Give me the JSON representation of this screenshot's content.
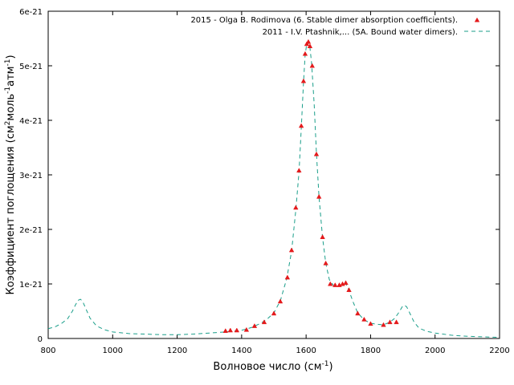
{
  "chart_data": {
    "type": "scatter",
    "xlabel": {
      "main": "Волновое число (см",
      "sup": "-1",
      "tail": ")"
    },
    "ylabel": {
      "p1": "Коэффициент поглощения (см",
      "sup1": "2",
      "p2": "моль",
      "sup2": "-1",
      "p3": "атм",
      "sup3": "-1",
      "p4": ")"
    },
    "xlim": [
      800,
      2200
    ],
    "ylim": [
      0,
      6e-21
    ],
    "xticks": [
      800,
      1000,
      1200,
      1400,
      1600,
      1800,
      2000,
      2200
    ],
    "xtick_labels": [
      "800",
      "1000",
      "1200",
      "1400",
      "1600",
      "1800",
      "2000",
      "2200"
    ],
    "yticks": [
      0,
      1e-21,
      2e-21,
      3e-21,
      4e-21,
      5e-21,
      6e-21
    ],
    "ytick_labels": [
      "0",
      "1e-21",
      "2e-21",
      "3e-21",
      "4e-21",
      "5e-21",
      "6e-21"
    ],
    "legend_position": "top-right",
    "grid": false,
    "series": [
      {
        "name": "2015 - Olga B. Rodimova (6. Stable dimer absorption coefficients).",
        "style": "markers",
        "color": "#e41a1c",
        "points": [
          [
            1350,
            1.4e-22
          ],
          [
            1365,
            1.5e-22
          ],
          [
            1385,
            1.5e-22
          ],
          [
            1415,
            1.6e-22
          ],
          [
            1440,
            2.3e-22
          ],
          [
            1470,
            3e-22
          ],
          [
            1500,
            4.6e-22
          ],
          [
            1520,
            6.8e-22
          ],
          [
            1542,
            1.12e-21
          ],
          [
            1555,
            1.62e-21
          ],
          [
            1568,
            2.4e-21
          ],
          [
            1578,
            3.08e-21
          ],
          [
            1585,
            3.9e-21
          ],
          [
            1592,
            4.72e-21
          ],
          [
            1597,
            5.22e-21
          ],
          [
            1602,
            5.4e-21
          ],
          [
            1607,
            5.44e-21
          ],
          [
            1612,
            5.36e-21
          ],
          [
            1619,
            5e-21
          ],
          [
            1632,
            3.38e-21
          ],
          [
            1640,
            2.6e-21
          ],
          [
            1651,
            1.86e-21
          ],
          [
            1661,
            1.38e-21
          ],
          [
            1675,
            1e-21
          ],
          [
            1690,
            9.8e-22
          ],
          [
            1703,
            9.8e-22
          ],
          [
            1713,
            1e-21
          ],
          [
            1723,
            1.02e-21
          ],
          [
            1733,
            8.9e-22
          ],
          [
            1760,
            4.6e-22
          ],
          [
            1780,
            3.5e-22
          ],
          [
            1800,
            2.7e-22
          ],
          [
            1840,
            2.5e-22
          ],
          [
            1860,
            3e-22
          ],
          [
            1880,
            3e-22
          ]
        ]
      },
      {
        "name": "2011 - I.V. Ptashnik,... (5A. Bound water dimers).",
        "style": "dashed-line",
        "color": "#1a9e8a",
        "points": [
          [
            800,
            1.8e-22
          ],
          [
            820,
            2.1e-22
          ],
          [
            840,
            2.7e-22
          ],
          [
            860,
            3.6e-22
          ],
          [
            875,
            5e-22
          ],
          [
            885,
            6.2e-22
          ],
          [
            893,
            7e-22
          ],
          [
            900,
            7.2e-22
          ],
          [
            907,
            6.8e-22
          ],
          [
            915,
            5.7e-22
          ],
          [
            930,
            3.7e-22
          ],
          [
            950,
            2.3e-22
          ],
          [
            975,
            1.6e-22
          ],
          [
            1000,
            1.2e-22
          ],
          [
            1050,
            9e-23
          ],
          [
            1100,
            8e-23
          ],
          [
            1150,
            7e-23
          ],
          [
            1200,
            7e-23
          ],
          [
            1250,
            8e-23
          ],
          [
            1300,
            1e-22
          ],
          [
            1350,
            1.2e-22
          ],
          [
            1400,
            1.5e-22
          ],
          [
            1430,
            2e-22
          ],
          [
            1460,
            2.8e-22
          ],
          [
            1480,
            3.6e-22
          ],
          [
            1500,
            4.7e-22
          ],
          [
            1520,
            6.9e-22
          ],
          [
            1540,
            1.1e-21
          ],
          [
            1555,
            1.6e-21
          ],
          [
            1568,
            2.35e-21
          ],
          [
            1578,
            3.05e-21
          ],
          [
            1585,
            3.85e-21
          ],
          [
            1592,
            4.7e-21
          ],
          [
            1597,
            5.2e-21
          ],
          [
            1602,
            5.4e-21
          ],
          [
            1606,
            5.44e-21
          ],
          [
            1611,
            5.38e-21
          ],
          [
            1617,
            5.05e-21
          ],
          [
            1625,
            4.3e-21
          ],
          [
            1632,
            3.4e-21
          ],
          [
            1640,
            2.6e-21
          ],
          [
            1651,
            1.85e-21
          ],
          [
            1661,
            1.38e-21
          ],
          [
            1672,
            1.08e-21
          ],
          [
            1685,
            9.7e-22
          ],
          [
            1700,
            9.6e-22
          ],
          [
            1712,
            9.9e-22
          ],
          [
            1722,
            1.02e-21
          ],
          [
            1733,
            8.8e-22
          ],
          [
            1745,
            6.8e-22
          ],
          [
            1760,
            4.7e-22
          ],
          [
            1780,
            3.4e-22
          ],
          [
            1800,
            2.8e-22
          ],
          [
            1820,
            2.6e-22
          ],
          [
            1840,
            2.5e-22
          ],
          [
            1860,
            3e-22
          ],
          [
            1875,
            3.7e-22
          ],
          [
            1888,
            4.8e-22
          ],
          [
            1898,
            5.8e-22
          ],
          [
            1905,
            6.1e-22
          ],
          [
            1912,
            5.8e-22
          ],
          [
            1922,
            4.6e-22
          ],
          [
            1935,
            3e-22
          ],
          [
            1950,
            1.9e-22
          ],
          [
            1975,
            1.3e-22
          ],
          [
            2000,
            1e-22
          ],
          [
            2050,
            6e-23
          ],
          [
            2100,
            4e-23
          ],
          [
            2150,
            3e-23
          ],
          [
            2200,
            2e-23
          ]
        ]
      }
    ]
  }
}
